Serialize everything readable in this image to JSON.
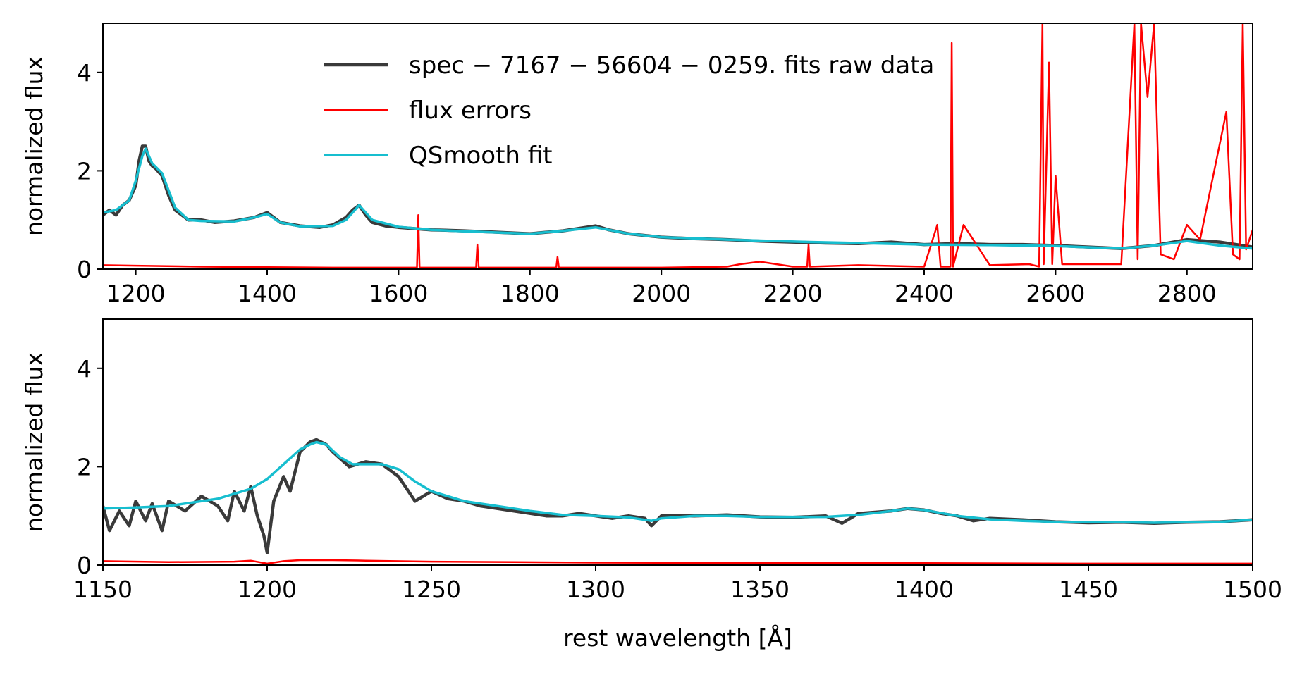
{
  "chart_data": [
    {
      "type": "line",
      "panel": "top",
      "xlim": [
        1150,
        2900
      ],
      "ylim": [
        0,
        5
      ],
      "xticks": [
        1200,
        1400,
        1600,
        1800,
        2000,
        2200,
        2400,
        2600,
        2800
      ],
      "yticks": [
        0,
        2,
        4
      ],
      "xlabel": "",
      "ylabel": "normalized flux",
      "legend_position": "top-center",
      "grid": false,
      "series": [
        {
          "name": "spec − 7167 − 56604 − 0259. fits raw data",
          "legend_label": "spec − 7167 − 56604 − 0259. fits raw data",
          "color": "#3a3a3a",
          "x": [
            1150,
            1160,
            1170,
            1180,
            1190,
            1200,
            1205,
            1210,
            1215,
            1220,
            1225,
            1230,
            1240,
            1250,
            1260,
            1280,
            1300,
            1320,
            1350,
            1380,
            1400,
            1420,
            1450,
            1480,
            1500,
            1520,
            1530,
            1540,
            1550,
            1560,
            1580,
            1600,
            1650,
            1700,
            1750,
            1800,
            1850,
            1900,
            1920,
            1950,
            2000,
            2050,
            2100,
            2150,
            2200,
            2250,
            2300,
            2350,
            2400,
            2450,
            2500,
            2550,
            2600,
            2650,
            2700,
            2750,
            2800,
            2850,
            2900
          ],
          "y": [
            1.1,
            1.2,
            1.1,
            1.3,
            1.4,
            1.7,
            2.2,
            2.5,
            2.5,
            2.2,
            2.1,
            2.05,
            1.9,
            1.5,
            1.2,
            1.0,
            1.0,
            0.95,
            0.98,
            1.05,
            1.15,
            0.95,
            0.88,
            0.85,
            0.9,
            1.05,
            1.2,
            1.3,
            1.1,
            0.95,
            0.88,
            0.85,
            0.8,
            0.78,
            0.75,
            0.72,
            0.78,
            0.88,
            0.8,
            0.72,
            0.65,
            0.62,
            0.6,
            0.57,
            0.55,
            0.53,
            0.52,
            0.55,
            0.5,
            0.52,
            0.5,
            0.5,
            0.48,
            0.45,
            0.42,
            0.48,
            0.6,
            0.55,
            0.45
          ]
        },
        {
          "name": "flux errors",
          "legend_label": " flux errors",
          "color": "#ff0000",
          "x": [
            1150,
            1200,
            1300,
            1400,
            1500,
            1600,
            1628,
            1630,
            1632,
            1700,
            1718,
            1720,
            1722,
            1800,
            1840,
            1842,
            1844,
            1900,
            2000,
            2100,
            2120,
            2150,
            2200,
            2222,
            2224,
            2226,
            2300,
            2400,
            2420,
            2425,
            2440,
            2442,
            2444,
            2460,
            2500,
            2560,
            2575,
            2580,
            2582,
            2590,
            2595,
            2600,
            2610,
            2650,
            2700,
            2720,
            2725,
            2730,
            2740,
            2750,
            2760,
            2780,
            2800,
            2820,
            2860,
            2870,
            2880,
            2885,
            2890,
            2900
          ],
          "y": [
            0.08,
            0.07,
            0.05,
            0.04,
            0.03,
            0.03,
            0.03,
            1.1,
            0.03,
            0.03,
            0.03,
            0.5,
            0.03,
            0.03,
            0.03,
            0.25,
            0.03,
            0.03,
            0.03,
            0.05,
            0.1,
            0.15,
            0.05,
            0.05,
            0.5,
            0.05,
            0.08,
            0.05,
            0.9,
            0.05,
            0.05,
            4.6,
            0.05,
            0.9,
            0.08,
            0.1,
            0.05,
            5.0,
            0.1,
            4.2,
            0.1,
            1.9,
            0.1,
            0.1,
            0.1,
            5.0,
            0.2,
            5.0,
            3.5,
            5.0,
            0.3,
            0.2,
            0.9,
            0.6,
            3.2,
            0.3,
            0.2,
            5.0,
            0.4,
            0.8
          ]
        },
        {
          "name": "QSmooth fit",
          "legend_label": "QSmooth fit",
          "color": "#17becf",
          "x": [
            1150,
            1170,
            1190,
            1200,
            1210,
            1215,
            1225,
            1240,
            1260,
            1280,
            1300,
            1350,
            1380,
            1400,
            1420,
            1450,
            1500,
            1520,
            1540,
            1560,
            1600,
            1650,
            1700,
            1800,
            1850,
            1900,
            1950,
            2000,
            2100,
            2200,
            2300,
            2400,
            2500,
            2600,
            2700,
            2750,
            2800,
            2850,
            2900
          ],
          "y": [
            1.15,
            1.2,
            1.4,
            1.8,
            2.3,
            2.45,
            2.15,
            1.95,
            1.25,
            1.0,
            0.98,
            0.97,
            1.05,
            1.12,
            0.95,
            0.87,
            0.88,
            1.0,
            1.3,
            1.0,
            0.86,
            0.8,
            0.77,
            0.72,
            0.78,
            0.85,
            0.72,
            0.65,
            0.6,
            0.56,
            0.53,
            0.5,
            0.49,
            0.47,
            0.42,
            0.48,
            0.57,
            0.48,
            0.42
          ]
        }
      ]
    },
    {
      "type": "line",
      "panel": "bottom",
      "xlim": [
        1150,
        1500
      ],
      "ylim": [
        0,
        5
      ],
      "xticks": [
        1150,
        1200,
        1250,
        1300,
        1350,
        1400,
        1450,
        1500
      ],
      "yticks": [
        0,
        2,
        4
      ],
      "xlabel": "rest wavelength [Å]",
      "ylabel": "normalized flux",
      "grid": false,
      "series": [
        {
          "color": "#3a3a3a",
          "x": [
            1150,
            1152,
            1155,
            1158,
            1160,
            1163,
            1165,
            1168,
            1170,
            1175,
            1180,
            1185,
            1188,
            1190,
            1193,
            1195,
            1197,
            1199,
            1200,
            1202,
            1205,
            1207,
            1210,
            1213,
            1215,
            1218,
            1220,
            1225,
            1230,
            1235,
            1240,
            1243,
            1245,
            1250,
            1255,
            1260,
            1265,
            1270,
            1275,
            1280,
            1285,
            1290,
            1295,
            1300,
            1305,
            1310,
            1315,
            1317,
            1320,
            1330,
            1340,
            1350,
            1360,
            1370,
            1375,
            1380,
            1390,
            1395,
            1400,
            1405,
            1410,
            1415,
            1420,
            1430,
            1440,
            1450,
            1460,
            1470,
            1480,
            1490,
            1500
          ],
          "y": [
            1.2,
            0.7,
            1.1,
            0.8,
            1.3,
            0.9,
            1.25,
            0.7,
            1.3,
            1.1,
            1.4,
            1.2,
            0.9,
            1.5,
            1.1,
            1.6,
            1.0,
            0.6,
            0.25,
            1.3,
            1.8,
            1.5,
            2.3,
            2.5,
            2.55,
            2.45,
            2.3,
            2.0,
            2.1,
            2.05,
            1.8,
            1.5,
            1.3,
            1.5,
            1.35,
            1.3,
            1.2,
            1.15,
            1.1,
            1.05,
            1.0,
            1.0,
            1.05,
            1.0,
            0.95,
            1.0,
            0.95,
            0.8,
            1.0,
            1.0,
            1.02,
            0.98,
            0.97,
            1.0,
            0.85,
            1.05,
            1.1,
            1.15,
            1.12,
            1.05,
            1.0,
            0.9,
            0.95,
            0.92,
            0.88,
            0.86,
            0.87,
            0.85,
            0.87,
            0.88,
            0.92
          ]
        },
        {
          "color": "#ff0000",
          "x": [
            1150,
            1170,
            1190,
            1195,
            1200,
            1205,
            1210,
            1220,
            1230,
            1250,
            1275,
            1300,
            1350,
            1400,
            1450,
            1500
          ],
          "y": [
            0.08,
            0.06,
            0.07,
            0.09,
            0.03,
            0.08,
            0.1,
            0.1,
            0.09,
            0.07,
            0.06,
            0.05,
            0.04,
            0.04,
            0.03,
            0.03
          ]
        },
        {
          "color": "#17becf",
          "x": [
            1150,
            1160,
            1170,
            1180,
            1185,
            1190,
            1195,
            1200,
            1205,
            1210,
            1213,
            1215,
            1218,
            1222,
            1226,
            1230,
            1235,
            1240,
            1245,
            1250,
            1260,
            1270,
            1280,
            1290,
            1300,
            1310,
            1317,
            1320,
            1330,
            1340,
            1350,
            1360,
            1370,
            1380,
            1390,
            1395,
            1400,
            1410,
            1420,
            1430,
            1440,
            1450,
            1460,
            1470,
            1480,
            1490,
            1500
          ],
          "y": [
            1.15,
            1.17,
            1.2,
            1.3,
            1.35,
            1.45,
            1.55,
            1.75,
            2.05,
            2.35,
            2.45,
            2.5,
            2.45,
            2.2,
            2.05,
            2.05,
            2.05,
            1.95,
            1.7,
            1.5,
            1.3,
            1.2,
            1.1,
            1.02,
            1.0,
            0.97,
            0.9,
            0.95,
            1.0,
            1.0,
            0.98,
            0.98,
            0.98,
            1.02,
            1.1,
            1.15,
            1.12,
            1.0,
            0.93,
            0.9,
            0.88,
            0.87,
            0.87,
            0.86,
            0.87,
            0.88,
            0.92
          ]
        }
      ]
    }
  ]
}
